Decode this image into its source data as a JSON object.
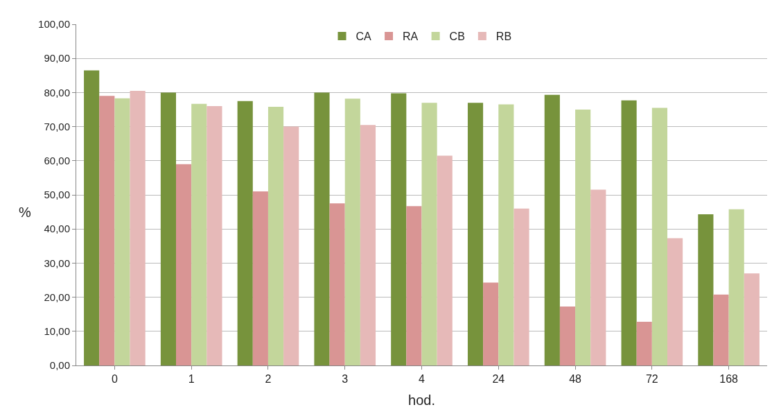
{
  "chart_data": {
    "type": "bar",
    "xlabel": "hod.",
    "ylabel": "%",
    "categories": [
      "0",
      "1",
      "2",
      "3",
      "4",
      "24",
      "48",
      "72",
      "168"
    ],
    "series": [
      {
        "name": "CA",
        "color": "#77933c",
        "values": [
          86.5,
          80,
          77.5,
          80,
          79.8,
          77,
          79.3,
          77.7,
          44.3
        ]
      },
      {
        "name": "RA",
        "color": "#d99594",
        "values": [
          79,
          59,
          51,
          47.5,
          46.7,
          24.3,
          17.3,
          12.8,
          20.8
        ]
      },
      {
        "name": "CB",
        "color": "#c3d69b",
        "values": [
          78.3,
          76.7,
          75.8,
          78.2,
          77,
          76.5,
          75,
          75.5,
          45.8
        ]
      },
      {
        "name": "RB",
        "color": "#e6b9b8",
        "values": [
          80.5,
          76,
          70,
          70.5,
          61.5,
          46,
          51.5,
          37.3,
          27
        ]
      }
    ],
    "ylim": [
      0,
      100
    ],
    "yticks": [
      {
        "value": 0,
        "label": "0,00"
      },
      {
        "value": 10,
        "label": "10,00"
      },
      {
        "value": 20,
        "label": "20,00"
      },
      {
        "value": 30,
        "label": "30,00"
      },
      {
        "value": 40,
        "label": "40,00"
      },
      {
        "value": 50,
        "label": "50,00"
      },
      {
        "value": 60,
        "label": "60,00"
      },
      {
        "value": 70,
        "label": "70,00"
      },
      {
        "value": 80,
        "label": "80,00"
      },
      {
        "value": 90,
        "label": "90,00"
      },
      {
        "value": 100,
        "label": "100,00"
      }
    ],
    "grid": "y",
    "legend": "top"
  }
}
